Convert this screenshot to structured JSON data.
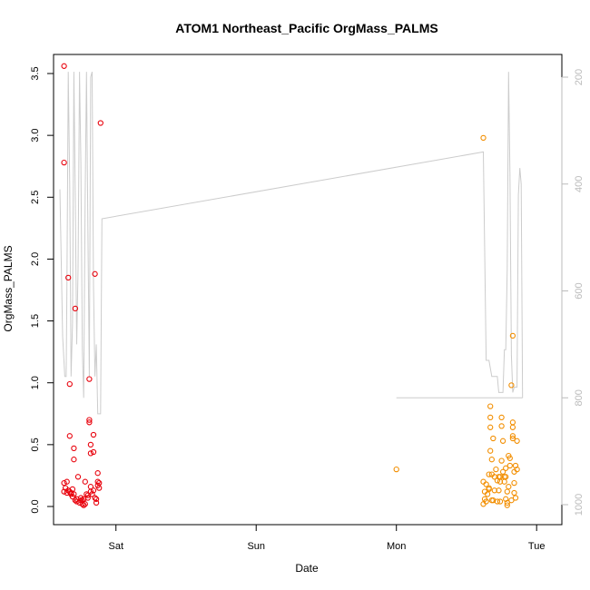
{
  "chart_data": {
    "type": "scatter",
    "title": "ATOM1 Northeast_Pacific OrgMass_PALMS",
    "xlabel": "Date",
    "ylabel": "OrgMass_PALMS",
    "ylim": [
      0,
      3.7
    ],
    "right_axis": {
      "ticks": [
        200,
        400,
        600,
        800,
        1000
      ],
      "color": "#bbbbbb",
      "reversed": true
    },
    "x_ticks": [
      {
        "label": "Sat",
        "t": 1.0
      },
      {
        "label": "Sun",
        "t": 2.0
      },
      {
        "label": "Mon",
        "t": 3.0
      },
      {
        "label": "Tue",
        "t": 4.0
      }
    ],
    "y_ticks": [
      0.0,
      0.5,
      1.0,
      1.5,
      2.0,
      2.5,
      3.0,
      3.5
    ],
    "y_tick_labels": [
      "0.0",
      "0.5",
      "1.0",
      "1.5",
      "2.0",
      "2.5",
      "3.0",
      "3.5"
    ],
    "series": [
      {
        "color": "#e8000b",
        "points": [
          [
            0.63,
            3.56
          ],
          [
            0.63,
            2.78
          ],
          [
            0.63,
            0.12
          ],
          [
            0.63,
            0.19
          ],
          [
            0.64,
            0.15
          ],
          [
            0.65,
            0.11
          ],
          [
            0.65,
            0.2
          ],
          [
            0.66,
            1.85
          ],
          [
            0.66,
            0.13
          ],
          [
            0.67,
            0.99
          ],
          [
            0.67,
            0.57
          ],
          [
            0.67,
            0.12
          ],
          [
            0.68,
            0.11
          ],
          [
            0.68,
            0.1
          ],
          [
            0.69,
            0.14
          ],
          [
            0.69,
            0.08
          ],
          [
            0.7,
            0.38
          ],
          [
            0.7,
            0.47
          ],
          [
            0.7,
            0.1
          ],
          [
            0.71,
            1.6
          ],
          [
            0.71,
            0.05
          ],
          [
            0.72,
            0.04
          ],
          [
            0.72,
            0.06
          ],
          [
            0.73,
            0.24
          ],
          [
            0.74,
            0.03
          ],
          [
            0.75,
            0.05
          ],
          [
            0.75,
            0.07
          ],
          [
            0.76,
            0.02
          ],
          [
            0.76,
            0.05
          ],
          [
            0.77,
            0.06
          ],
          [
            0.77,
            0.01
          ],
          [
            0.78,
            0.02
          ],
          [
            0.78,
            0.2
          ],
          [
            0.79,
            0.1
          ],
          [
            0.8,
            0.07
          ],
          [
            0.8,
            0.09
          ],
          [
            0.81,
            1.03
          ],
          [
            0.81,
            0.7
          ],
          [
            0.81,
            0.68
          ],
          [
            0.82,
            0.5
          ],
          [
            0.82,
            0.43
          ],
          [
            0.82,
            0.12
          ],
          [
            0.82,
            0.16
          ],
          [
            0.83,
            0.1
          ],
          [
            0.84,
            0.58
          ],
          [
            0.84,
            0.44
          ],
          [
            0.84,
            0.13
          ],
          [
            0.85,
            1.88
          ],
          [
            0.85,
            0.07
          ],
          [
            0.86,
            0.06
          ],
          [
            0.86,
            0.03
          ],
          [
            0.87,
            0.17
          ],
          [
            0.87,
            0.27
          ],
          [
            0.87,
            0.2
          ],
          [
            0.88,
            0.15
          ],
          [
            0.88,
            0.19
          ],
          [
            0.89,
            3.1
          ]
        ]
      },
      {
        "color": "#f28e00",
        "points": [
          [
            3.0,
            0.3
          ],
          [
            3.62,
            2.98
          ],
          [
            3.62,
            0.2
          ],
          [
            3.62,
            0.02
          ],
          [
            3.63,
            0.06
          ],
          [
            3.63,
            0.12
          ],
          [
            3.64,
            0.04
          ],
          [
            3.64,
            0.18
          ],
          [
            3.65,
            0.1
          ],
          [
            3.66,
            0.14
          ],
          [
            3.66,
            0.15
          ],
          [
            3.66,
            0.26
          ],
          [
            3.67,
            0.45
          ],
          [
            3.67,
            0.64
          ],
          [
            3.67,
            0.72
          ],
          [
            3.67,
            0.81
          ],
          [
            3.68,
            0.38
          ],
          [
            3.68,
            0.26
          ],
          [
            3.68,
            0.05
          ],
          [
            3.69,
            0.05
          ],
          [
            3.69,
            0.55
          ],
          [
            3.7,
            0.13
          ],
          [
            3.7,
            0.24
          ],
          [
            3.71,
            0.3
          ],
          [
            3.72,
            0.21
          ],
          [
            3.72,
            0.04
          ],
          [
            3.73,
            0.13
          ],
          [
            3.73,
            0.24
          ],
          [
            3.74,
            0.04
          ],
          [
            3.74,
            0.24
          ],
          [
            3.74,
            0.2
          ],
          [
            3.75,
            0.72
          ],
          [
            3.75,
            0.37
          ],
          [
            3.75,
            0.65
          ],
          [
            3.76,
            0.53
          ],
          [
            3.76,
            0.28
          ],
          [
            3.77,
            0.24
          ],
          [
            3.77,
            0.2
          ],
          [
            3.78,
            0.06
          ],
          [
            3.78,
            0.31
          ],
          [
            3.78,
            0.24
          ],
          [
            3.79,
            0.12
          ],
          [
            3.79,
            0.03
          ],
          [
            3.79,
            0.01
          ],
          [
            3.8,
            0.41
          ],
          [
            3.8,
            0.16
          ],
          [
            3.81,
            0.39
          ],
          [
            3.81,
            0.33
          ],
          [
            3.82,
            0.05
          ],
          [
            3.82,
            0.98
          ],
          [
            3.83,
            0.68
          ],
          [
            3.83,
            0.57
          ],
          [
            3.83,
            0.55
          ],
          [
            3.83,
            0.64
          ],
          [
            3.83,
            1.38
          ],
          [
            3.84,
            0.28
          ],
          [
            3.84,
            0.19
          ],
          [
            3.84,
            0.11
          ],
          [
            3.85,
            0.33
          ],
          [
            3.85,
            0.07
          ],
          [
            3.86,
            0.53
          ],
          [
            3.86,
            0.3
          ]
        ]
      }
    ],
    "altitude_line": {
      "color": "#cccccc",
      "points": [
        [
          0.6,
          410
        ],
        [
          0.62,
          685
        ],
        [
          0.635,
          760
        ],
        [
          0.645,
          760
        ],
        [
          0.65,
          600
        ],
        [
          0.66,
          190
        ],
        [
          0.67,
          400
        ],
        [
          0.68,
          760
        ],
        [
          0.69,
          660
        ],
        [
          0.7,
          190
        ],
        [
          0.71,
          420
        ],
        [
          0.72,
          700
        ],
        [
          0.73,
          560
        ],
        [
          0.74,
          190
        ],
        [
          0.75,
          360
        ],
        [
          0.76,
          710
        ],
        [
          0.77,
          800
        ],
        [
          0.78,
          430
        ],
        [
          0.79,
          190
        ],
        [
          0.8,
          480
        ],
        [
          0.81,
          760
        ],
        [
          0.82,
          200
        ],
        [
          0.83,
          190
        ],
        [
          0.84,
          590
        ],
        [
          0.85,
          760
        ],
        [
          0.86,
          700
        ],
        [
          0.87,
          830
        ],
        [
          0.88,
          830
        ],
        [
          0.89,
          830
        ],
        [
          0.9,
          465
        ],
        [
          3.62,
          340
        ],
        [
          3.64,
          730
        ],
        [
          3.66,
          730
        ],
        [
          3.68,
          760
        ],
        [
          3.7,
          760
        ],
        [
          3.72,
          760
        ],
        [
          3.73,
          790
        ],
        [
          3.76,
          790
        ],
        [
          3.77,
          710
        ],
        [
          3.78,
          710
        ],
        [
          3.79,
          560
        ],
        [
          3.8,
          190
        ],
        [
          3.81,
          380
        ],
        [
          3.82,
          720
        ],
        [
          3.83,
          790
        ],
        [
          3.84,
          780
        ],
        [
          3.86,
          780
        ],
        [
          3.87,
          420
        ],
        [
          3.88,
          370
        ],
        [
          3.89,
          400
        ],
        [
          3.9,
          800
        ]
      ],
      "segment": [
        [
          3.0,
          800
        ],
        [
          3.9,
          800
        ]
      ]
    }
  }
}
